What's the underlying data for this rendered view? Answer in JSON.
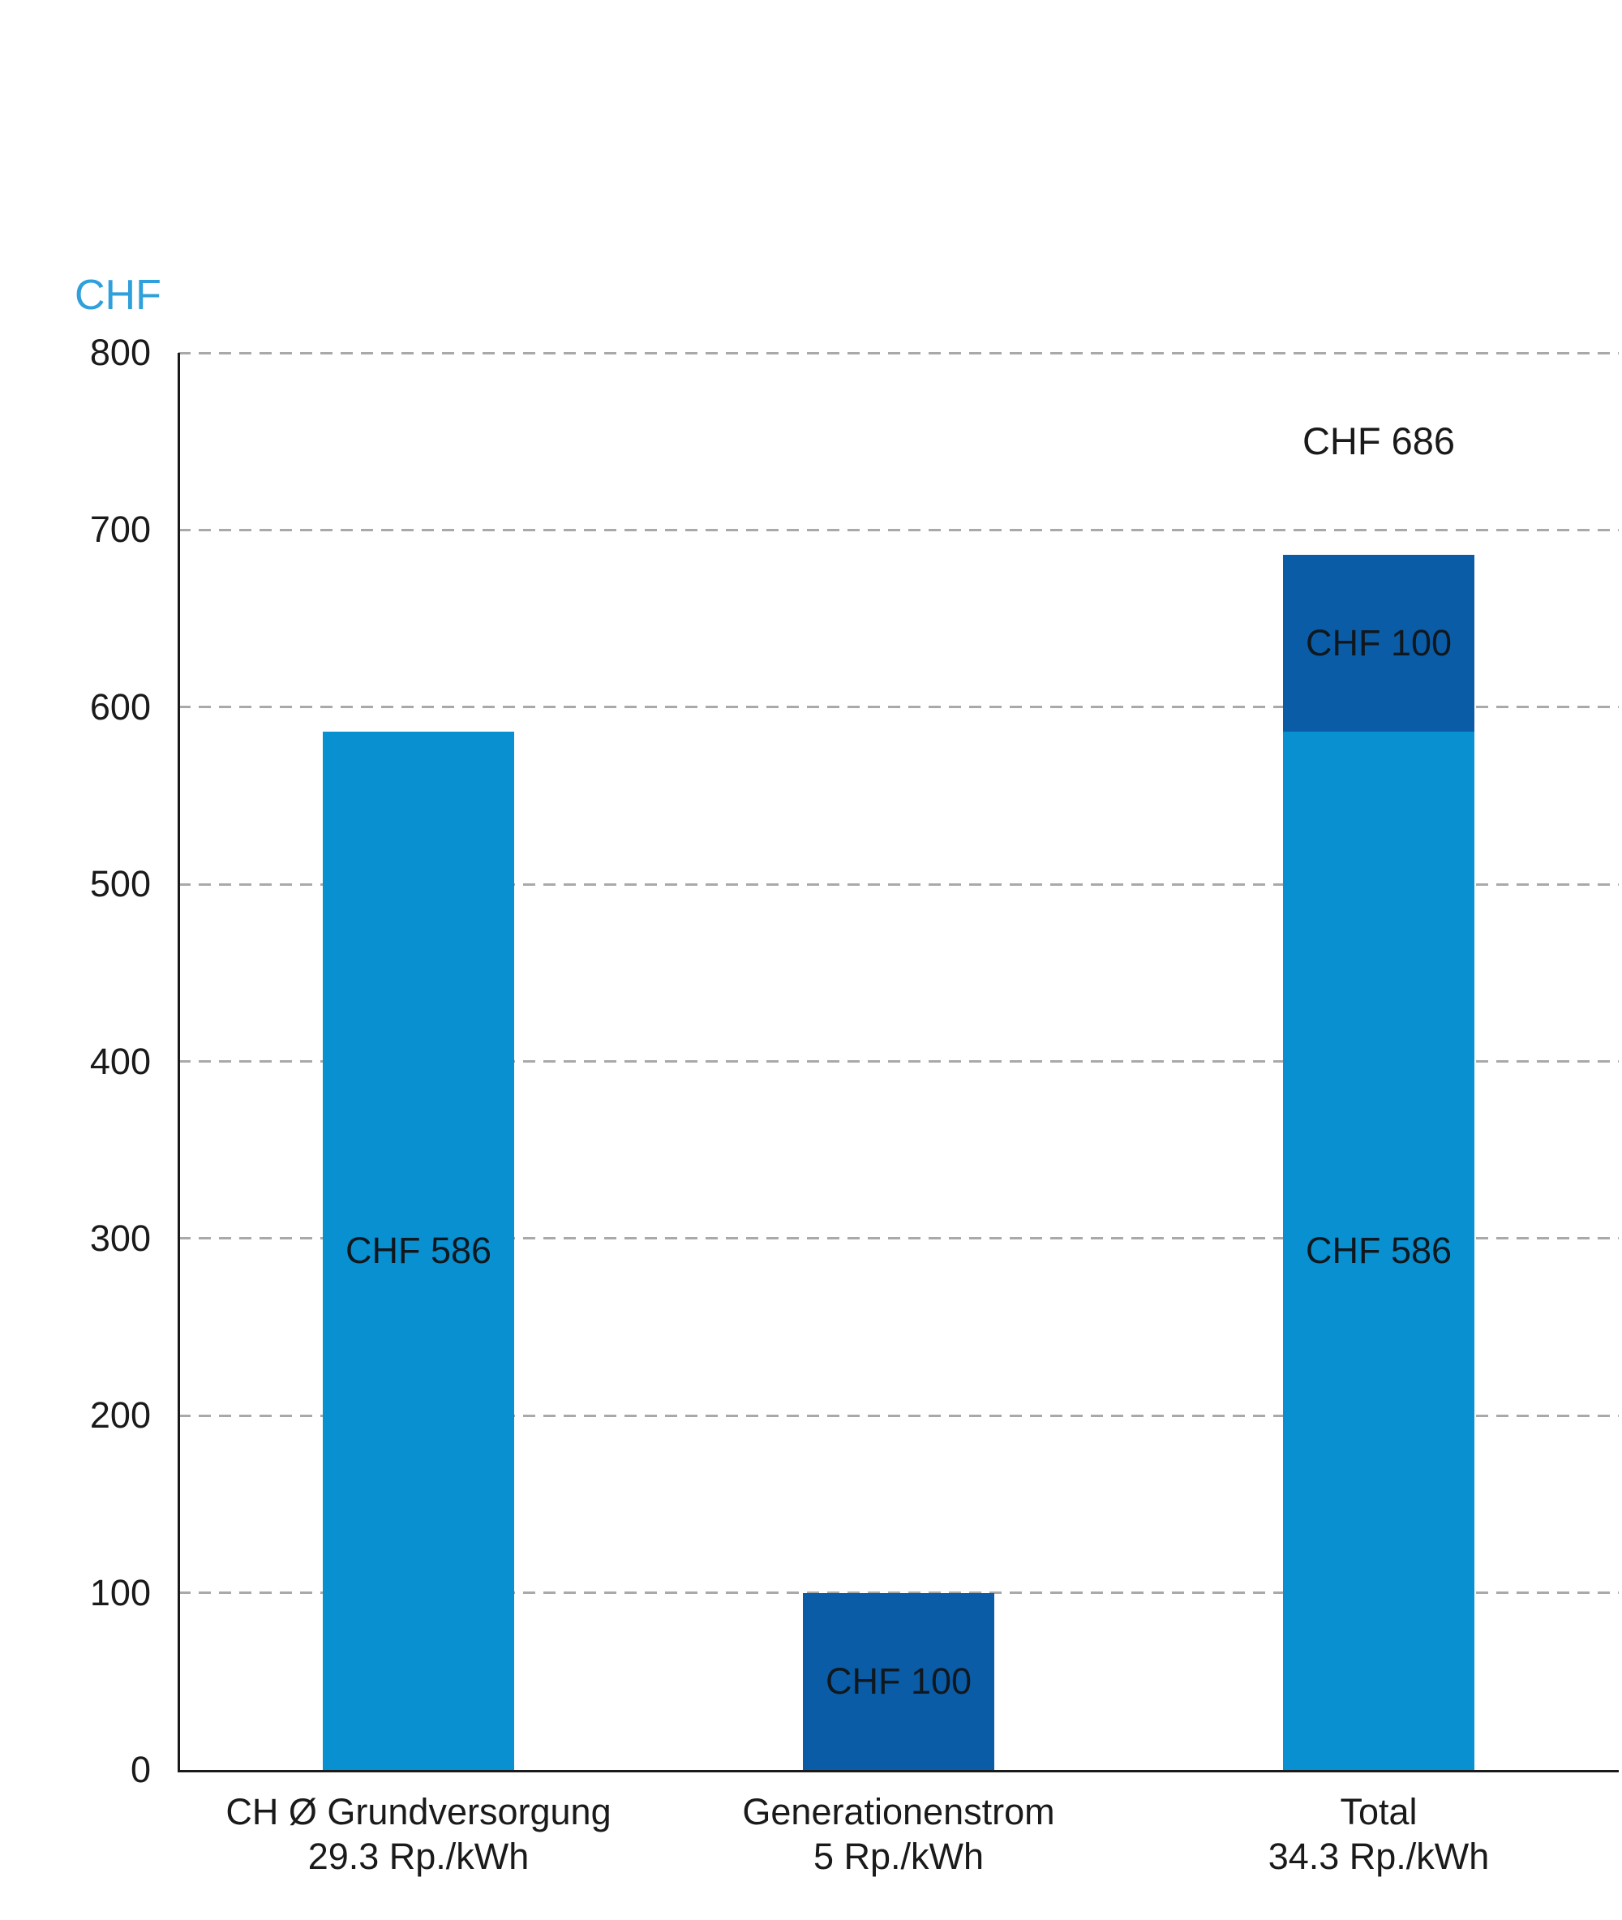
{
  "chart_data": {
    "type": "bar",
    "stacked": true,
    "title": "",
    "ylabel": "CHF",
    "xlabel": "",
    "ylim": [
      0,
      800
    ],
    "yticks": [
      0,
      100,
      200,
      300,
      400,
      500,
      600,
      700,
      800
    ],
    "grid": "horizontal-dashed",
    "legend": "none",
    "colors": {
      "ylabel_blue": "#2fa0db",
      "light_blue_bar": "#0890d0",
      "dark_blue_bar": "#0b5ca6",
      "gridline_gray": "#a9a9a9",
      "axis_text": "#1a1a1a"
    },
    "categories": [
      {
        "name": "CH Ø Grundversorgung",
        "sub": "29.3 Rp./kWh"
      },
      {
        "name": "Generationenstrom",
        "sub": "5 Rp./kWh"
      },
      {
        "name": "Total",
        "sub": "34.3 Rp./kWh"
      }
    ],
    "series": [
      {
        "name": "light-blue",
        "color": "#0890d0",
        "values": [
          586,
          null,
          586
        ],
        "labels": [
          "CHF 586",
          null,
          "CHF 586"
        ]
      },
      {
        "name": "dark-blue",
        "color": "#0b5ca6",
        "values": [
          null,
          100,
          100
        ],
        "labels": [
          null,
          "CHF 100",
          "CHF 100"
        ]
      }
    ],
    "annotations": [
      {
        "text": "CHF 686",
        "category_index": 2,
        "y_value": 750
      }
    ]
  }
}
